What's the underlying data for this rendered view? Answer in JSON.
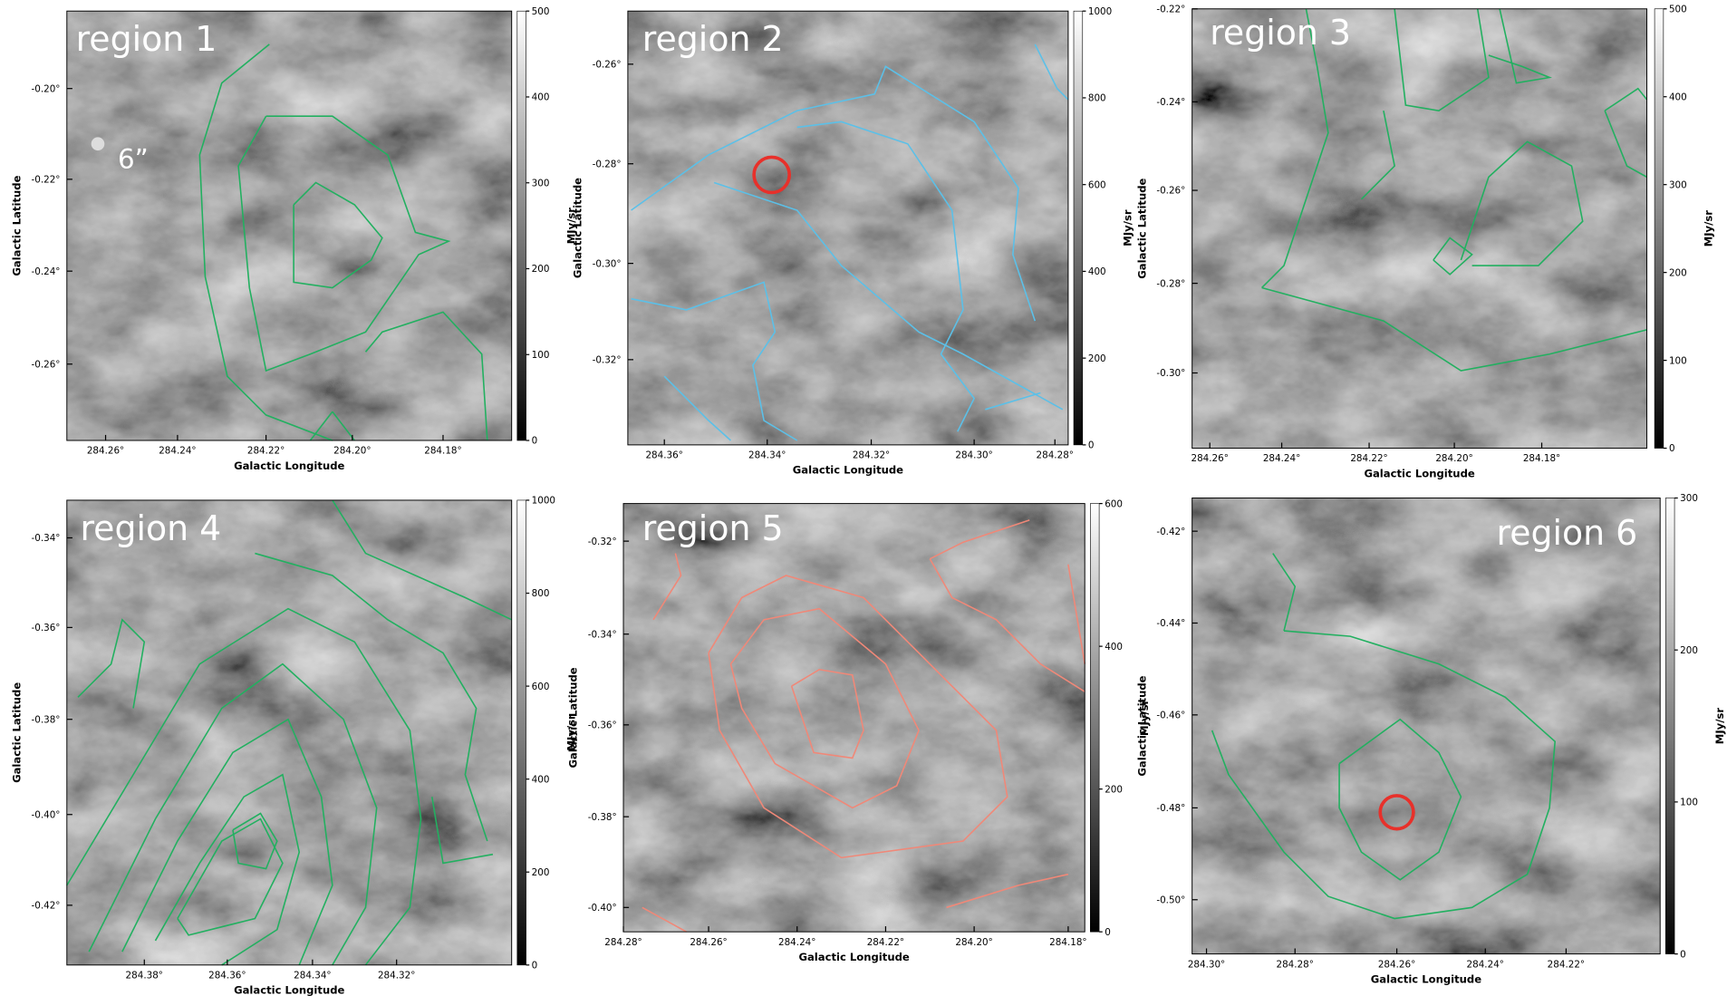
{
  "panels": [
    {
      "label": "region 1",
      "beam_label": "6”",
      "x_label": "Galactic Longitude",
      "y_label": "Galactic Latitude",
      "xticks": [
        "284.26°",
        "284.24°",
        "284.22°",
        "284.20°",
        "284.18°"
      ],
      "yticks": [
        "-0.20°",
        "-0.22°",
        "-0.24°",
        "-0.26°"
      ],
      "colorbar_label": "MJy/sr",
      "colorbar_ticks": [
        "0",
        "100",
        "200",
        "300",
        "400",
        "500"
      ]
    },
    {
      "label": "region 2",
      "x_label": "Galactic Longitude",
      "y_label": "Galactic Latitude",
      "xticks": [
        "284.36°",
        "284.34°",
        "284.32°",
        "284.30°",
        "284.28°"
      ],
      "yticks": [
        "-0.26°",
        "-0.28°",
        "-0.30°",
        "-0.32°"
      ],
      "colorbar_label": "MJy/sr",
      "colorbar_ticks": [
        "0",
        "200",
        "400",
        "600",
        "800",
        "1000"
      ]
    },
    {
      "label": "region 3",
      "x_label": "Galactic Longitude",
      "y_label": "Galactic Latitude",
      "xticks": [
        "284.26°",
        "284.24°",
        "284.22°",
        "284.20°",
        "284.18°"
      ],
      "yticks": [
        "-0.22°",
        "-0.24°",
        "-0.26°",
        "-0.28°",
        "-0.30°"
      ],
      "colorbar_label": "MJy/sr",
      "colorbar_ticks": [
        "0",
        "100",
        "200",
        "300",
        "400",
        "500"
      ]
    },
    {
      "label": "region 4",
      "x_label": "Galactic Longitude",
      "y_label": "Galactic Latitude",
      "xticks": [
        "284.38°",
        "284.36°",
        "284.34°",
        "284.32°"
      ],
      "yticks": [
        "-0.34°",
        "-0.36°",
        "-0.38°",
        "-0.40°",
        "-0.42°"
      ],
      "colorbar_label": "MJy/sr",
      "colorbar_ticks": [
        "0",
        "200",
        "400",
        "600",
        "800",
        "1000"
      ]
    },
    {
      "label": "region 5",
      "x_label": "Galactic Longitude",
      "y_label": "Galactic Latitude",
      "xticks": [
        "284.28°",
        "284.26°",
        "284.24°",
        "284.22°",
        "284.20°",
        "284.18°"
      ],
      "yticks": [
        "-0.32°",
        "-0.34°",
        "-0.36°",
        "-0.38°",
        "-0.40°"
      ],
      "colorbar_label": "MJy/sr",
      "colorbar_ticks": [
        "0",
        "200",
        "400",
        "600"
      ]
    },
    {
      "label": "region 6",
      "x_label": "Galactic Longitude",
      "y_label": "Galactic Latitude",
      "xticks": [
        "284.30°",
        "284.28°",
        "284.26°",
        "284.24°",
        "284.22°"
      ],
      "yticks": [
        "-0.42°",
        "-0.44°",
        "-0.46°",
        "-0.48°",
        "-0.50°"
      ],
      "colorbar_label": "MJy/sr",
      "colorbar_ticks": [
        "0",
        "100",
        "200",
        "300"
      ]
    }
  ]
}
